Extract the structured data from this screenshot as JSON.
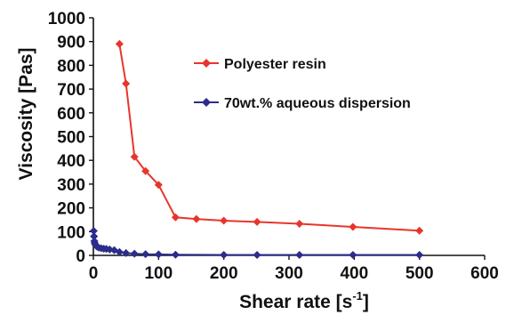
{
  "chart_data": {
    "type": "scatter",
    "title": "",
    "xlabel": "Shear rate [s",
    "xlabel_sup": "-1",
    "xlabel_close": "]",
    "ylabel": "Viscosity [Pas]",
    "xlim": [
      0,
      600
    ],
    "ylim": [
      0,
      1000
    ],
    "x_ticks": [
      0,
      100,
      200,
      300,
      400,
      500,
      600
    ],
    "y_ticks": [
      0,
      100,
      200,
      300,
      400,
      500,
      600,
      700,
      800,
      900,
      1000
    ],
    "grid": false,
    "legend_position": "upper-right",
    "series": [
      {
        "name": "Polyester resin",
        "color": "#e8352b",
        "marker": "diamond",
        "points": [
          [
            40,
            890
          ],
          [
            50,
            723
          ],
          [
            63,
            415
          ],
          [
            80,
            355
          ],
          [
            100,
            297
          ],
          [
            126,
            160
          ],
          [
            158,
            153
          ],
          [
            200,
            146
          ],
          [
            251,
            141
          ],
          [
            316,
            133
          ],
          [
            398,
            120
          ],
          [
            500,
            104
          ]
        ]
      },
      {
        "name": "70wt.% aqueous dispersion",
        "color": "#2c2c8c",
        "marker": "diamond",
        "points": [
          [
            0.5,
            103
          ],
          [
            1,
            80
          ],
          [
            1.5,
            60
          ],
          [
            2,
            52
          ],
          [
            3,
            45
          ],
          [
            5,
            38
          ],
          [
            8,
            33
          ],
          [
            12,
            30
          ],
          [
            16,
            28
          ],
          [
            20,
            27
          ],
          [
            25,
            25
          ],
          [
            32,
            22
          ],
          [
            40,
            14
          ],
          [
            50,
            10
          ],
          [
            63,
            7
          ],
          [
            80,
            5
          ],
          [
            100,
            4
          ],
          [
            126,
            3
          ],
          [
            200,
            2
          ],
          [
            251,
            2
          ],
          [
            316,
            2
          ],
          [
            398,
            2
          ],
          [
            500,
            2
          ]
        ]
      }
    ]
  }
}
